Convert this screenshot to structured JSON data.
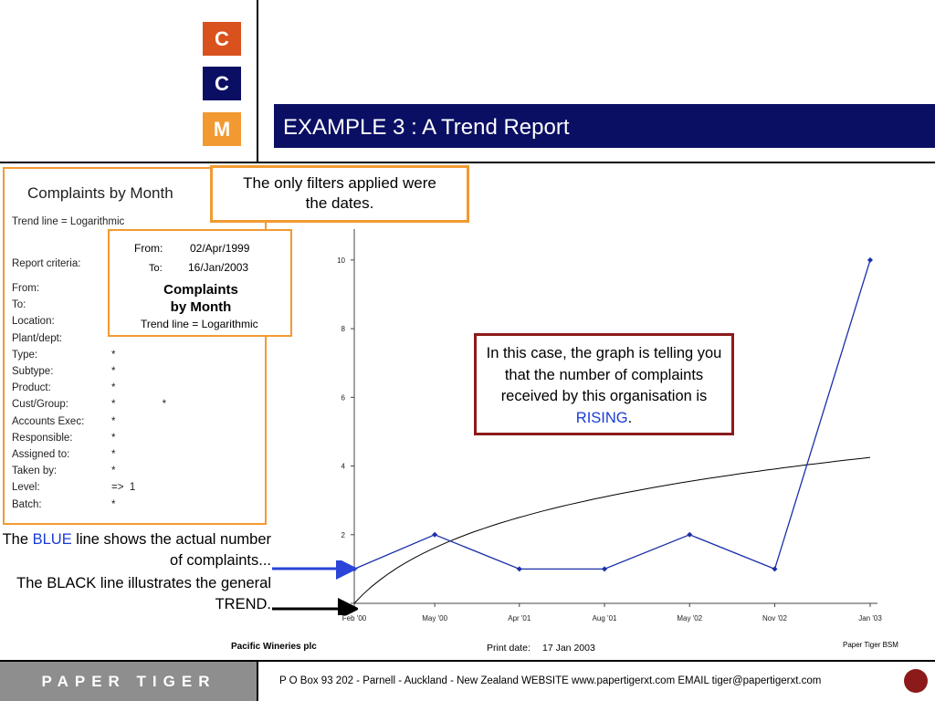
{
  "logo": {
    "letters": [
      "C",
      "C",
      "M"
    ],
    "colors": [
      "#d9511c",
      "#0a0f63",
      "#f29a31"
    ]
  },
  "header": {
    "title": "EXAMPLE 3 : A Trend Report"
  },
  "report": {
    "title": "Complaints by Month",
    "trend_line": "Trend line = Logarithmic",
    "criteria_label": "Report criteria:",
    "rows": [
      {
        "label": "From:",
        "value": ""
      },
      {
        "label": "To:",
        "value": ""
      },
      {
        "label": "Location:",
        "value": ""
      },
      {
        "label": "Plant/dept:",
        "value": ""
      },
      {
        "label": "Type:",
        "value": "*"
      },
      {
        "label": "Subtype:",
        "value": "*"
      },
      {
        "label": "Product:",
        "value": "*"
      },
      {
        "label": "Cust/Group:",
        "value": "*                *"
      },
      {
        "label": "Accounts Exec:",
        "value": "*"
      },
      {
        "label": "Responsible:",
        "value": "*"
      },
      {
        "label": "Assigned to:",
        "value": "*"
      },
      {
        "label": "Taken by:",
        "value": "*"
      },
      {
        "label": "Level:",
        "value": "=>  1"
      },
      {
        "label": "Batch:",
        "value": "*"
      }
    ]
  },
  "criteria_box": {
    "from_label": "From:",
    "from_value": "02/Apr/1999",
    "to_label": "To:",
    "to_value": "16/Jan/2003",
    "heading_line1": "Complaints",
    "heading_line2": "by Month",
    "trend_line": "Trend line = Logarithmic"
  },
  "callouts": {
    "filters_line1": "The only  filters applied were",
    "filters_line2": "the dates.",
    "rising_prefix": "In this case, the graph is telling you that the number of complaints received by this organisation is ",
    "rising_word": "RISING",
    "rising_suffix": ".",
    "blue_prefix": "The ",
    "blue_word": "BLUE",
    "blue_suffix": " line shows the actual number of complaints...",
    "black_note": "The BLACK line illustrates the general TREND."
  },
  "chart_meta": {
    "company": "Pacific Wineries plc",
    "print_label": "Print date:",
    "print_date": "17 Jan 2003",
    "brand": "Paper Tiger BSM",
    "actual_color": "#1a2fa8",
    "trend_color": "#000000"
  },
  "chart_data": {
    "type": "line",
    "categories": [
      "Feb '00",
      "May '00",
      "Apr '01",
      "Aug '01",
      "May '02",
      "Nov '02",
      "Jan '03"
    ],
    "series": [
      {
        "values": [
          1,
          2,
          1,
          1,
          2,
          1,
          10
        ]
      }
    ],
    "trend": {
      "values": [
        0,
        1.55,
        2.35,
        2.95,
        3.45,
        3.9,
        4.25
      ],
      "scale": "logarithmic"
    },
    "yticks": [
      0,
      2,
      4,
      6,
      8,
      10
    ],
    "ylim": [
      0,
      10.9
    ],
    "xlabel": "",
    "ylabel": ""
  },
  "footer": {
    "brand": "PAPER TIGER",
    "contact": "P O Box 93 202 - Parnell - Auckland - New Zealand   WEBSITE  www.papertigerxt.com   EMAIL  tiger@papertigerxt.com"
  }
}
